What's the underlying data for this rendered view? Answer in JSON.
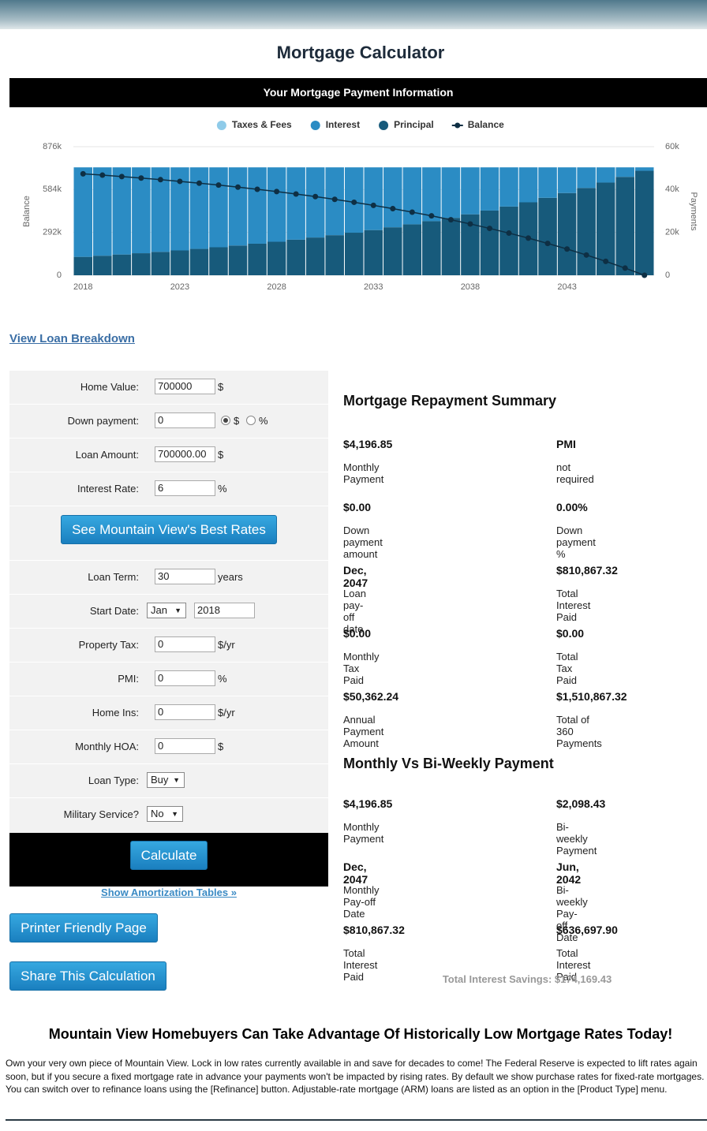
{
  "header": {
    "title": "Mortgage Calculator",
    "banner": "Your Mortgage Payment Information"
  },
  "chart_data": {
    "type": "bar",
    "categories": [
      "2018",
      null,
      null,
      null,
      null,
      "2023",
      null,
      null,
      null,
      null,
      "2028",
      null,
      null,
      null,
      null,
      "2033",
      null,
      null,
      null,
      null,
      "2038",
      null,
      null,
      null,
      null,
      "2043",
      null,
      null,
      null,
      null
    ],
    "series": [
      {
        "name": "Taxes & Fees",
        "color": "#8fcbe9",
        "axis": "y2",
        "values": [
          0,
          0,
          0,
          0,
          0,
          0,
          0,
          0,
          0,
          0,
          0,
          0,
          0,
          0,
          0,
          0,
          0,
          0,
          0,
          0,
          0,
          0,
          0,
          0,
          0,
          0,
          0,
          0,
          0,
          0
        ]
      },
      {
        "name": "Interest",
        "color": "#2b8cc4",
        "axis": "y2",
        "values": [
          41766,
          41236,
          40673,
          40075,
          39441,
          38767,
          38052,
          37293,
          36487,
          35631,
          34722,
          33758,
          32734,
          31647,
          30492,
          29267,
          27966,
          26584,
          25118,
          23561,
          21908,
          20153,
          18290,
          16312,
          14212,
          11982,
          9615,
          7102,
          4434,
          1601
        ]
      },
      {
        "name": "Principal",
        "color": "#175a7b",
        "axis": "y2",
        "values": [
          8596,
          9126,
          9689,
          10287,
          10921,
          11595,
          12310,
          13069,
          13875,
          14731,
          15640,
          16604,
          17628,
          18715,
          19870,
          21095,
          22396,
          23778,
          25244,
          26801,
          28454,
          30209,
          32072,
          34050,
          36150,
          38380,
          40747,
          43260,
          45928,
          48761
        ]
      },
      {
        "name": "Balance",
        "color": "#0e2f44",
        "type": "line",
        "values": [
          691404,
          682278,
          672589,
          662302,
          651381,
          639786,
          627476,
          614407,
          600532,
          585801,
          570161,
          553557,
          535929,
          517214,
          497344,
          476249,
          453853,
          430075,
          404831,
          378030,
          349576,
          319367,
          287295,
          253245,
          217095,
          178715,
          137968,
          94708,
          48780,
          0
        ]
      }
    ],
    "y_label": "Balance",
    "y2_label": "Payments",
    "ylim": [
      0,
      876000
    ],
    "yticks": [
      0,
      {
        "value": 292000,
        "label": "292k"
      },
      {
        "value": 584000,
        "label": "584k"
      },
      {
        "value": 876000,
        "label": "876k"
      }
    ],
    "y2lim": [
      0,
      60000
    ],
    "y2ticks": [
      0,
      {
        "value": 20000,
        "label": "20k"
      },
      {
        "value": 40000,
        "label": "40k"
      },
      {
        "value": 60000,
        "label": "60k"
      }
    ],
    "grid": true
  },
  "links": {
    "loan_breakdown": "View Loan Breakdown",
    "amortization": "Show Amortization Tables »"
  },
  "form": {
    "rows": [
      {
        "label": "Home Value:",
        "value": "700000",
        "unit": "$"
      },
      {
        "label": "Down payment:",
        "value": "0",
        "options": [
          "$",
          "%"
        ]
      },
      {
        "label": "Loan Amount:",
        "value": "700000.00",
        "unit": "$"
      },
      {
        "label": "Interest Rate:",
        "value": "6",
        "unit": "%"
      },
      {
        "label": "Loan Term:",
        "value": "30",
        "unit": "years"
      },
      {
        "label": "Start Date:",
        "select": "Jan",
        "value": "2018"
      },
      {
        "label": "Property Tax:",
        "value": "0",
        "unit": "$/yr"
      },
      {
        "label": "PMI:",
        "value": "0",
        "unit": "%"
      },
      {
        "label": "Home Ins:",
        "value": "0",
        "unit": "$/yr"
      },
      {
        "label": "Monthly HOA:",
        "value": "0",
        "unit": "$"
      },
      {
        "label": "Loan Type:",
        "select": "Buy"
      },
      {
        "label": "Military Service?",
        "select": "No"
      }
    ],
    "rates_button": "See Mountain View's Best Rates",
    "calculate": "Calculate"
  },
  "buttons": {
    "printer": "Printer Friendly Page",
    "share": "Share This Calculation"
  },
  "summary": {
    "title": "Mortgage Repayment Summary",
    "items": [
      {
        "value": "$4,196.85",
        "label": "Monthly Payment"
      },
      {
        "value": "PMI",
        "label": "not required"
      },
      {
        "value": "$0.00",
        "label": "Down payment amount"
      },
      {
        "value": "0.00%",
        "label": "Down payment %"
      },
      {
        "value": "Dec, 2047",
        "label": "Loan pay-off date"
      },
      {
        "value": "$810,867.32",
        "label": "Total Interest Paid"
      },
      {
        "value": "$0.00",
        "label": "Monthly Tax Paid"
      },
      {
        "value": "$0.00",
        "label": "Total Tax Paid"
      },
      {
        "value": "$50,362.24",
        "label": "Annual Payment Amount"
      },
      {
        "value": "$1,510,867.32",
        "label": "Total of 360 Payments"
      }
    ]
  },
  "biweekly": {
    "title": "Monthly Vs Bi-Weekly Payment",
    "items": [
      {
        "value": "$4,196.85",
        "label": "Monthly Payment"
      },
      {
        "value": "$2,098.43",
        "label": "Bi-weekly Payment"
      },
      {
        "value": "Dec, 2047",
        "label": "Monthly Pay-off Date"
      },
      {
        "value": "Jun, 2042",
        "label": "Bi-weekly Pay-off Date"
      },
      {
        "value": "$810,867.32",
        "label": "Total Interest Paid"
      },
      {
        "value": "$636,697.90",
        "label": "Total Interest Paid"
      }
    ],
    "savings": "Total Interest Savings: $174,169.43"
  },
  "footer": {
    "heading": "Mountain View Homebuyers Can Take Advantage Of Historically Low Mortgage Rates Today!",
    "text": "Own your very own piece of Mountain View. Lock in low rates currently available in and save for decades to come! The Federal Reserve is expected to lift rates again soon, but if you secure a fixed mortgage rate in advance your payments won't be impacted by rising rates. By default we show purchase rates for fixed-rate mortgages. You can switch over to refinance loans using the [Refinance] button. Adjustable-rate mortgage (ARM) loans are listed as an option in the [Product Type] menu."
  }
}
